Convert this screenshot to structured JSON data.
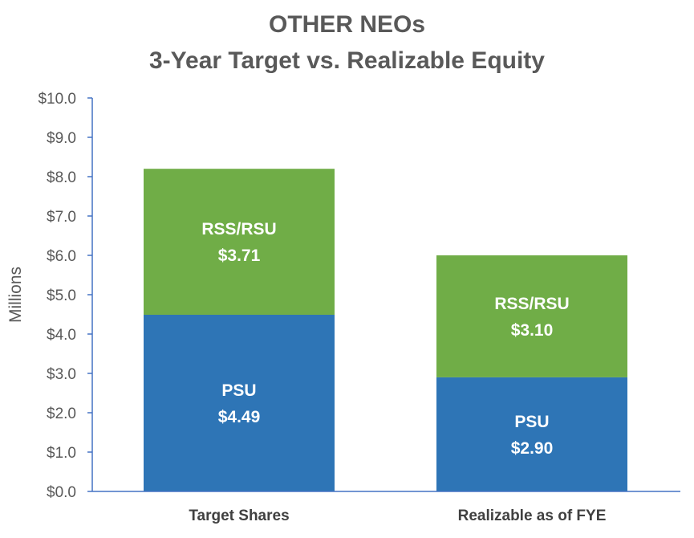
{
  "chart_data": {
    "type": "bar",
    "stacked": true,
    "title": [
      "OTHER NEOs",
      "3-Year Target vs. Realizable Equity"
    ],
    "ylabel": "Millions",
    "xlabel": "",
    "categories": [
      "Target Shares",
      "Realizable as of FYE"
    ],
    "ylim": [
      0,
      10
    ],
    "yticks": [
      0,
      1,
      2,
      3,
      4,
      5,
      6,
      7,
      8,
      9,
      10
    ],
    "ytick_labels": [
      "$0.0",
      "$1.0",
      "$2.0",
      "$3.0",
      "$4.0",
      "$5.0",
      "$6.0",
      "$7.0",
      "$8.0",
      "$9.0",
      "$10.0"
    ],
    "series": [
      {
        "name": "PSU",
        "values": [
          4.49,
          2.9
        ],
        "labels": [
          "$4.49",
          "$2.90"
        ],
        "color": "#2e75b6"
      },
      {
        "name": "RSS/RSU",
        "values": [
          3.71,
          3.1
        ],
        "labels": [
          "$3.71",
          "$3.10"
        ],
        "color": "#70ad47"
      }
    ],
    "legend": "none",
    "grid": false,
    "axis_color": "#4472c4"
  }
}
